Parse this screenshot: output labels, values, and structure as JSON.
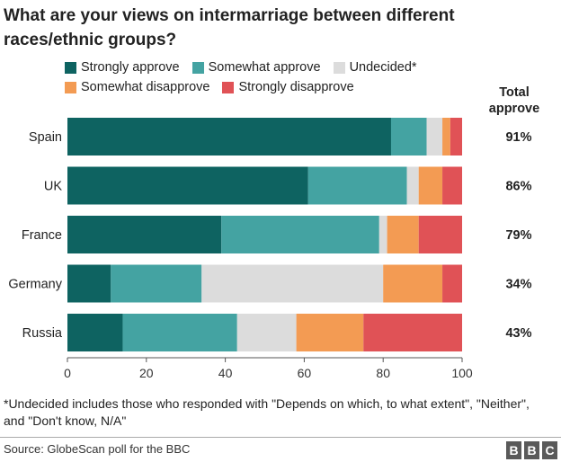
{
  "title": "What are your views on intermarriage between different races/ethnic groups?",
  "legend": [
    {
      "label": "Strongly approve",
      "color": "#0e6361"
    },
    {
      "label": "Somewhat approve",
      "color": "#44a3a2"
    },
    {
      "label": "Undecided*",
      "color": "#dcdcdc"
    },
    {
      "label": "Somewhat disapprove",
      "color": "#f39b53"
    },
    {
      "label": "Strongly disapprove",
      "color": "#e05256"
    }
  ],
  "total_header": "Total approve",
  "footnote": "*Undecided includes those who responded with \"Depends on which, to what extent\", \"Neither\", and \"Don't know, N/A\"",
  "source": "Source: GlobeScan poll for the BBC",
  "brand": {
    "letters": [
      "B",
      "B",
      "C"
    ]
  },
  "chart_data": {
    "type": "bar",
    "orientation": "horizontal",
    "stacked": true,
    "categories": [
      "Spain",
      "UK",
      "France",
      "Germany",
      "Russia"
    ],
    "series": [
      {
        "name": "Strongly approve",
        "color": "#0e6361",
        "values": [
          82,
          61,
          39,
          11,
          14
        ]
      },
      {
        "name": "Somewhat approve",
        "color": "#44a3a2",
        "values": [
          9,
          25,
          40,
          23,
          29
        ]
      },
      {
        "name": "Undecided*",
        "color": "#dcdcdc",
        "values": [
          4,
          3,
          2,
          46,
          15
        ]
      },
      {
        "name": "Somewhat disapprove",
        "color": "#f39b53",
        "values": [
          2,
          6,
          8,
          15,
          17
        ]
      },
      {
        "name": "Strongly disapprove",
        "color": "#e05256",
        "values": [
          3,
          5,
          11,
          5,
          25
        ]
      }
    ],
    "total_approve": [
      "91%",
      "86%",
      "79%",
      "34%",
      "43%"
    ],
    "xlim": [
      0,
      100
    ],
    "xticks": [
      0,
      20,
      40,
      60,
      80,
      100
    ],
    "grid": false,
    "legend_position": "top"
  }
}
